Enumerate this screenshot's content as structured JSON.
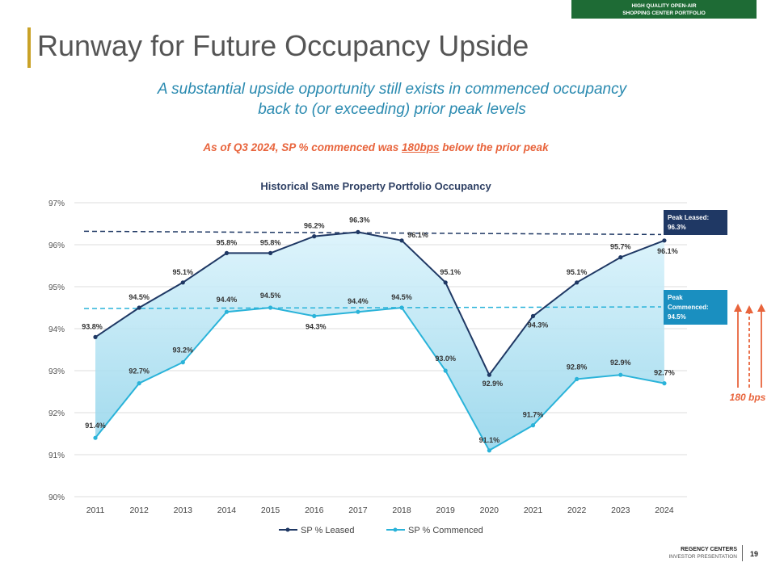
{
  "header": {
    "badge_line1": "HIGH QUALITY OPEN-AIR",
    "badge_line2": "SHOPPING CENTER PORTFOLIO",
    "title": "Runway for Future Occupancy Upside",
    "subtitle_line1": "A substantial upside opportunity still exists in commenced occupancy",
    "subtitle_line2": "back to (or exceeding) prior peak levels",
    "note_prefix": "As of Q3 2024, SP % commenced was ",
    "note_emph": "180bps",
    "note_suffix": " below the prior peak"
  },
  "footer": {
    "brand": "REGENCY CENTERS",
    "sub": "INVESTOR PRESENTATION",
    "page": "19"
  },
  "colors": {
    "leased": "#1f3864",
    "commenced": "#2ab3d9",
    "fill": "#bfe8f5",
    "accent": "#e8643c",
    "badge": "#1e6b35",
    "title_bar": "#c9a227",
    "peak_commenced_box": "#1a8fc0"
  },
  "chart_data": {
    "type": "line",
    "title": "Historical Same Property Portfolio Occupancy",
    "x": [
      "2011",
      "2012",
      "2013",
      "2014",
      "2015",
      "2016",
      "2017",
      "2018",
      "2019",
      "2020",
      "2021",
      "2022",
      "2023",
      "2024"
    ],
    "ylim": [
      90,
      97
    ],
    "yticks": [
      "90%",
      "91%",
      "92%",
      "93%",
      "94%",
      "95%",
      "96%",
      "97%"
    ],
    "series": [
      {
        "name": "SP % Leased",
        "values": [
          93.8,
          94.5,
          95.1,
          95.8,
          95.8,
          96.2,
          96.3,
          96.1,
          95.1,
          92.9,
          94.3,
          95.1,
          95.7,
          96.1
        ],
        "labels": [
          "93.8%",
          "94.5%",
          "95.1%",
          "95.8%",
          "95.8%",
          "96.2%",
          "96.3%",
          "96.1%",
          "95.1%",
          "92.9%",
          "94.3%",
          "95.1%",
          "95.7%",
          "96.1%"
        ]
      },
      {
        "name": "SP % Commenced",
        "values": [
          91.4,
          92.7,
          93.2,
          94.4,
          94.5,
          94.3,
          94.4,
          94.5,
          93.0,
          91.1,
          91.7,
          92.8,
          92.9,
          92.7
        ],
        "labels": [
          "91.4%",
          "92.7%",
          "93.2%",
          "94.4%",
          "94.5%",
          "94.3%",
          "94.4%",
          "94.5%",
          "93.0%",
          "91.1%",
          "91.7%",
          "92.8%",
          "92.9%",
          "92.7%"
        ]
      }
    ],
    "reference_lines": [
      {
        "value": 96.3,
        "label_line1": "Peak Leased:",
        "label_line2": "96.3%"
      },
      {
        "value": 94.5,
        "label_line1": "Peak",
        "label_line2": "Commenced:",
        "label_line3": "94.5%"
      }
    ],
    "gap_annotation": "180 bps",
    "grid": true,
    "legend": "bottom"
  }
}
